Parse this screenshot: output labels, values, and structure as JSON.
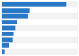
{
  "chart_data": {
    "type": "bar",
    "orientation": "horizontal",
    "values": [
      1800,
      780,
      720,
      420,
      380,
      340,
      300,
      200,
      80
    ],
    "color": "#2878c8",
    "xlim": [
      0,
      2100
    ],
    "tick_labels": false
  }
}
